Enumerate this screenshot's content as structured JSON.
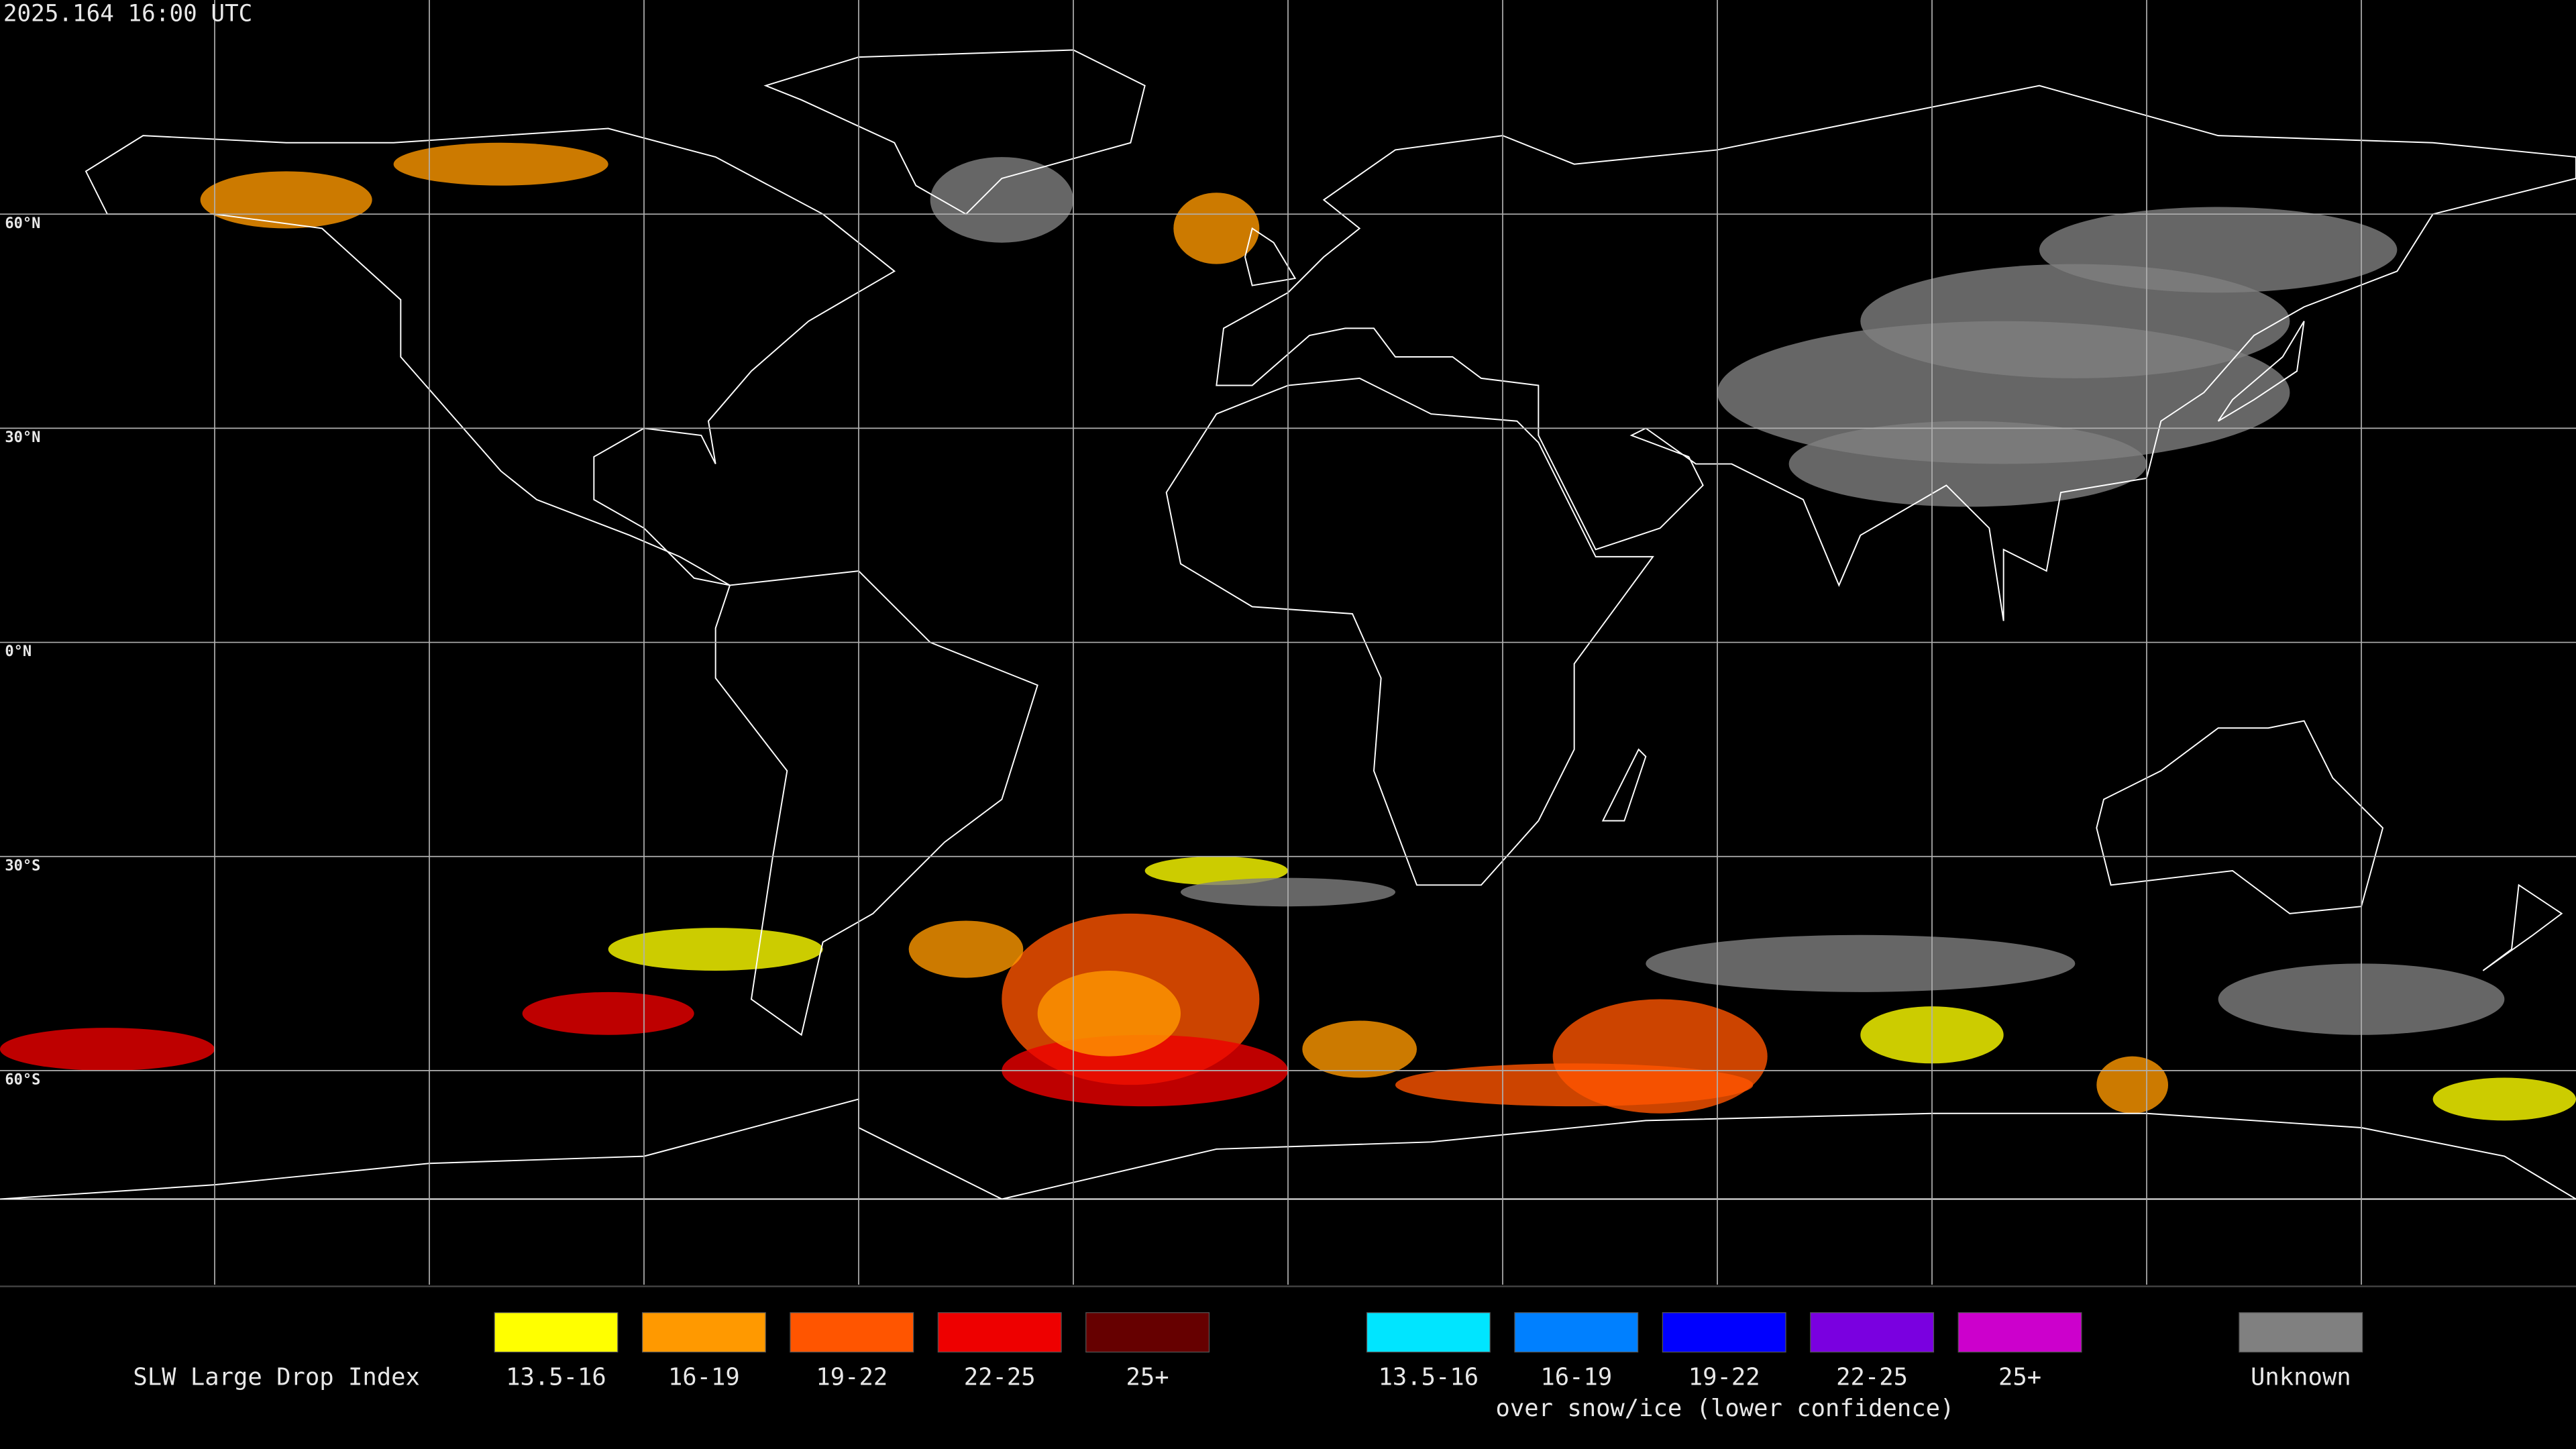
{
  "header": {
    "timestamp": "2025.164 16:00 UTC"
  },
  "map": {
    "latitude_labels": [
      "60°N",
      "30°N",
      "0°N",
      "30°S",
      "60°S"
    ]
  },
  "legend": {
    "title": "SLW Large Drop Index",
    "items": [
      {
        "label": "13.5-16",
        "color": "#ffff00"
      },
      {
        "label": "16-19",
        "color": "#ff9900"
      },
      {
        "label": "19-22",
        "color": "#ff5500"
      },
      {
        "label": "22-25",
        "color": "#ee0000"
      },
      {
        "label": "25+",
        "color": "#660000"
      }
    ],
    "snow_items": [
      {
        "label": "13.5-16",
        "color": "#00e5ff"
      },
      {
        "label": "16-19",
        "color": "#0080ff"
      },
      {
        "label": "19-22",
        "color": "#0000ff"
      },
      {
        "label": "22-25",
        "color": "#7a00e0"
      },
      {
        "label": "25+",
        "color": "#cc00cc"
      }
    ],
    "snow_note": "over snow/ice (lower confidence)",
    "unknown": {
      "label": "Unknown",
      "color": "#808080"
    }
  }
}
